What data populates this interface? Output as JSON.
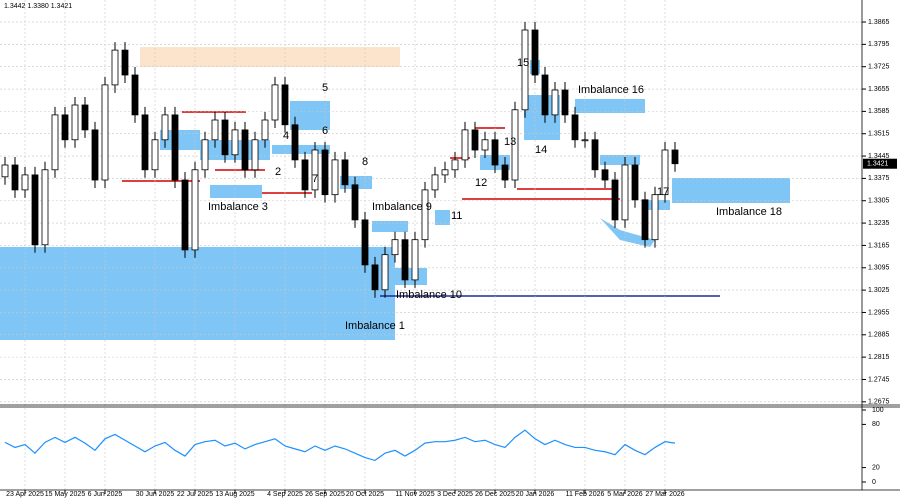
{
  "chart_data": [
    {
      "type": "candlestick",
      "title": "1.3442 1.3380 1.3421",
      "open": [
        1.338,
        1.3417,
        1.3339,
        1.3386,
        1.3167,
        1.3402,
        1.3574,
        1.3496,
        1.3605,
        1.3527,
        1.337,
        1.3668,
        1.3777,
        1.3699,
        1.3574,
        1.3402,
        1.3496,
        1.3574,
        1.337,
        1.3151,
        1.3402,
        1.3496,
        1.3558,
        1.3449,
        1.3527,
        1.3402,
        1.3496,
        1.3558,
        1.3668,
        1.3543,
        1.3433,
        1.3339,
        1.3464,
        1.3324,
        1.3433,
        1.3355,
        1.3245,
        1.3104,
        1.3026,
        1.3136,
        1.3183,
        1.3057,
        1.3183,
        1.3339,
        1.3386,
        1.3402,
        1.3433,
        1.3527,
        1.3464,
        1.3496,
        1.3417,
        1.337,
        1.359,
        1.384,
        1.3699,
        1.3574,
        1.3652,
        1.3574,
        1.3496,
        1.3496,
        1.3402,
        1.337,
        1.3245,
        1.3417,
        1.3308,
        1.3183,
        1.3324,
        1.3464
      ],
      "high": [
        1.3442,
        1.3442,
        1.3411,
        1.3411,
        1.3427,
        1.3599,
        1.3599,
        1.363,
        1.363,
        1.3552,
        1.3693,
        1.3802,
        1.3802,
        1.3724,
        1.3599,
        1.3521,
        1.3599,
        1.3599,
        1.3395,
        1.3427,
        1.3521,
        1.3583,
        1.3583,
        1.3552,
        1.3552,
        1.3521,
        1.3583,
        1.3693,
        1.3693,
        1.3568,
        1.3458,
        1.3489,
        1.3489,
        1.3458,
        1.3458,
        1.338,
        1.327,
        1.3129,
        1.3161,
        1.3208,
        1.3208,
        1.3208,
        1.3364,
        1.3411,
        1.3427,
        1.3458,
        1.3552,
        1.3552,
        1.3521,
        1.3521,
        1.3442,
        1.3615,
        1.3865,
        1.3865,
        1.3724,
        1.3677,
        1.3677,
        1.3599,
        1.3521,
        1.3521,
        1.3427,
        1.3395,
        1.3442,
        1.3442,
        1.3333,
        1.3349,
        1.3489,
        1.3489
      ],
      "low": [
        1.3355,
        1.3314,
        1.3314,
        1.3142,
        1.3142,
        1.3377,
        1.3471,
        1.3471,
        1.3502,
        1.3345,
        1.3345,
        1.3643,
        1.3674,
        1.3549,
        1.3377,
        1.3377,
        1.3471,
        1.3345,
        1.3126,
        1.3126,
        1.3377,
        1.3471,
        1.3424,
        1.3424,
        1.3377,
        1.3377,
        1.3471,
        1.3533,
        1.3518,
        1.3408,
        1.3314,
        1.3314,
        1.3299,
        1.3299,
        1.333,
        1.322,
        1.3079,
        1.3001,
        1.3001,
        1.3111,
        1.3032,
        1.3032,
        1.3158,
        1.3314,
        1.3361,
        1.3377,
        1.3408,
        1.3439,
        1.3439,
        1.3392,
        1.3345,
        1.3345,
        1.3565,
        1.3674,
        1.3549,
        1.3549,
        1.3549,
        1.3471,
        1.3471,
        1.3377,
        1.3345,
        1.322,
        1.322,
        1.3283,
        1.3158,
        1.3158,
        1.3299,
        1.3396
      ],
      "close": [
        1.3417,
        1.3339,
        1.3386,
        1.3167,
        1.3402,
        1.3574,
        1.3496,
        1.3605,
        1.3527,
        1.337,
        1.3668,
        1.3777,
        1.3699,
        1.3574,
        1.3402,
        1.3496,
        1.3574,
        1.337,
        1.3151,
        1.3402,
        1.3496,
        1.3558,
        1.3449,
        1.3527,
        1.3402,
        1.3496,
        1.3558,
        1.3668,
        1.3543,
        1.3433,
        1.3339,
        1.3464,
        1.3324,
        1.3433,
        1.3355,
        1.3245,
        1.3104,
        1.3026,
        1.3136,
        1.3183,
        1.3057,
        1.3183,
        1.3339,
        1.3386,
        1.3402,
        1.3433,
        1.3527,
        1.3464,
        1.3496,
        1.3417,
        1.337,
        1.359,
        1.384,
        1.3699,
        1.3574,
        1.3652,
        1.3574,
        1.3496,
        1.3496,
        1.3402,
        1.337,
        1.3245,
        1.3417,
        1.3308,
        1.3183,
        1.3324,
        1.3464,
        1.3421
      ],
      "ylim": [
        1.2665,
        1.3934
      ],
      "yticks": [
        1.2675,
        1.2745,
        1.2815,
        1.2885,
        1.2955,
        1.3025,
        1.3095,
        1.3165,
        1.3235,
        1.3305,
        1.3375,
        1.3445,
        1.3515,
        1.3585,
        1.3655,
        1.3725,
        1.3795,
        1.3865
      ],
      "xticks": [
        {
          "value": 2,
          "label": "23 Apr 2025"
        },
        {
          "value": 6,
          "label": "15 May 2025"
        },
        {
          "value": 10,
          "label": "6 Jun 2025"
        },
        {
          "value": 15,
          "label": "30 Jun 2025"
        },
        {
          "value": 19,
          "label": "22 Jul 2025"
        },
        {
          "value": 23,
          "label": "13 Aug 2025"
        },
        {
          "value": 28,
          "label": "4 Sep 2025"
        },
        {
          "value": 32,
          "label": "26 Sep 2025"
        },
        {
          "value": 36,
          "label": "20 Oct 2025"
        },
        {
          "value": 41,
          "label": "11 Nov 2025"
        },
        {
          "value": 45,
          "label": "3 Dec 2025"
        },
        {
          "value": 49,
          "label": "26 Dec 2025"
        },
        {
          "value": 53,
          "label": "20 Jan 2026"
        },
        {
          "value": 58,
          "label": "11 Feb 2026"
        },
        {
          "value": 62,
          "label": "5 Mar 2026"
        },
        {
          "value": 66,
          "label": "27 Mar 2026"
        }
      ],
      "grid": true,
      "annotations": [
        "Imbalance 1",
        "Imbalance 3",
        "Imbalance 9",
        "Imbalance 10",
        "Imbalance 16",
        "Imbalance 18",
        "2",
        "4",
        "5",
        "6",
        "7",
        "8",
        "11",
        "12",
        "13",
        "14",
        "15",
        "17"
      ]
    },
    {
      "type": "line",
      "color": "#1e90ff",
      "values": [
        55,
        48,
        52,
        40,
        55,
        62,
        55,
        62,
        54,
        44,
        60,
        66,
        58,
        50,
        42,
        50,
        55,
        44,
        36,
        52,
        56,
        58,
        50,
        54,
        46,
        52,
        56,
        60,
        50,
        46,
        42,
        50,
        44,
        50,
        46,
        40,
        34,
        30,
        40,
        44,
        36,
        44,
        54,
        56,
        56,
        58,
        62,
        56,
        58,
        52,
        48,
        62,
        72,
        60,
        52,
        58,
        52,
        48,
        48,
        44,
        42,
        38,
        52,
        44,
        38,
        48,
        56,
        54
      ],
      "ylim": [
        0,
        100
      ],
      "yticks": [
        0,
        20,
        80,
        100
      ]
    }
  ]
}
